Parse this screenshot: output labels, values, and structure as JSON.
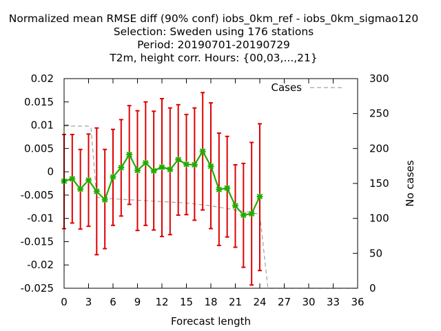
{
  "chart_data": {
    "type": "line",
    "title_lines": [
      "Normalized mean RMSE diff (90% conf) iobs_0km_ref - iobs_0km_sigmao120",
      "Selection: Sweden using   176 stations",
      "Period: 20190701-20190729",
      "T2m, height corr.   Hours: {00,03,...,21}"
    ],
    "xlabel": "Forecast length",
    "ylabel": "",
    "y2label": "No cases",
    "xlim": [
      0,
      36
    ],
    "ylim": [
      -0.025,
      0.02
    ],
    "y2lim": [
      0,
      300
    ],
    "x_ticks": [
      "0",
      "3",
      "6",
      "9",
      "12",
      "15",
      "18",
      "21",
      "24",
      "27",
      "30",
      "33",
      "36"
    ],
    "y_ticks": [
      "0.02",
      "0.015",
      "0.01",
      "0.005",
      "0",
      "-0.005",
      "-0.01",
      "-0.015",
      "-0.02",
      "-0.025"
    ],
    "y2_ticks": [
      "300",
      "250",
      "200",
      "150",
      "100",
      "50",
      "0"
    ],
    "grid": false,
    "legend": {
      "position": "top-right",
      "entries": [
        "Cases"
      ]
    },
    "series": [
      {
        "style": "green line with error bars",
        "color": "#22aa00",
        "errorbar_color": "#dd0000",
        "x": [
          0,
          1,
          2,
          3,
          4,
          5,
          6,
          7,
          8,
          9,
          10,
          11,
          12,
          13,
          14,
          15,
          16,
          17,
          18,
          19,
          20,
          21,
          22,
          23,
          24
        ],
        "y": [
          -0.002,
          -0.0015,
          -0.0037,
          -0.0018,
          -0.0042,
          -0.006,
          -0.0011,
          0.0009,
          0.0037,
          0.0003,
          0.0019,
          0.0002,
          0.001,
          0.0005,
          0.0026,
          0.0016,
          0.0015,
          0.0044,
          0.0012,
          -0.0038,
          -0.0035,
          -0.0073,
          -0.0093,
          -0.009,
          -0.0053
        ],
        "y_low": [
          -0.0122,
          -0.011,
          -0.0123,
          -0.0117,
          -0.0178,
          -0.0165,
          -0.0115,
          -0.0095,
          -0.007,
          -0.0126,
          -0.0115,
          -0.0125,
          -0.0139,
          -0.0135,
          -0.0093,
          -0.0092,
          -0.0104,
          -0.0082,
          -0.0122,
          -0.0158,
          -0.014,
          -0.0162,
          -0.0205,
          -0.0243,
          -0.0212
        ],
        "y_high": [
          0.008,
          0.008,
          0.0048,
          0.0081,
          0.0094,
          0.0048,
          0.0091,
          0.0112,
          0.0142,
          0.0131,
          0.015,
          0.013,
          0.0157,
          0.0137,
          0.0144,
          0.0123,
          0.0137,
          0.017,
          0.0148,
          0.0083,
          0.0076,
          0.0015,
          0.0018,
          0.0063,
          0.0103
        ]
      },
      {
        "name": "Cases",
        "style": "grey dashed line, right axis",
        "color": "#a0a0a0",
        "axis": "y2",
        "x": [
          0,
          3,
          3.3,
          4,
          6,
          9,
          12,
          15,
          18,
          21,
          22,
          23,
          24,
          25,
          36
        ],
        "y": [
          232,
          232,
          230,
          130,
          128,
          126,
          124,
          122,
          118,
          112,
          110,
          108,
          106,
          0,
          0
        ]
      }
    ]
  }
}
